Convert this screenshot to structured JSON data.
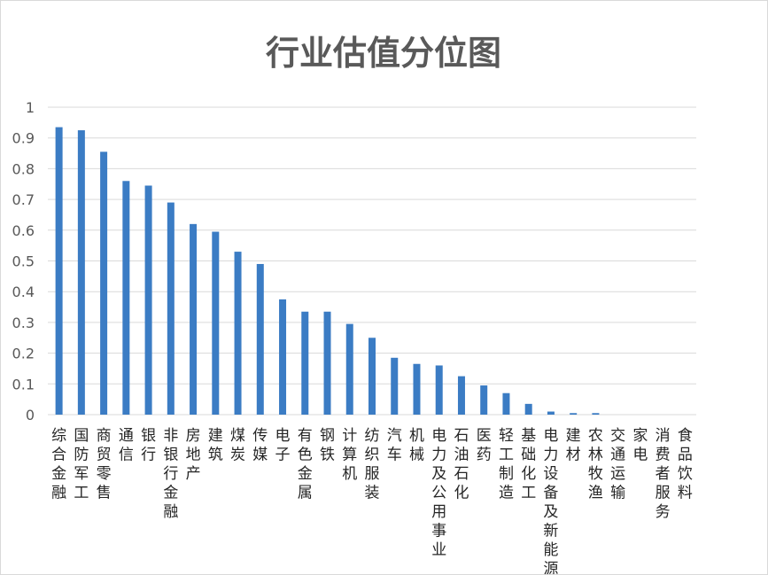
{
  "chart_data": {
    "type": "bar",
    "title": "行业估值分位图",
    "xlabel": "",
    "ylabel": "",
    "ylim": [
      0,
      1
    ],
    "yticks": [
      0,
      0.1,
      0.2,
      0.3,
      0.4,
      0.5,
      0.6,
      0.7,
      0.8,
      0.9,
      1
    ],
    "ytick_labels": [
      "0",
      "0.1",
      "0.2",
      "0.3",
      "0.4",
      "0.5",
      "0.6",
      "0.7",
      "0.8",
      "0.9",
      "1"
    ],
    "grid": true,
    "legend": "none",
    "bar_color": "#3b7cc4",
    "categories": [
      "综合金融",
      "国防军工",
      "商贸零售",
      "通信",
      "银行",
      "非银行金融",
      "房地产",
      "建筑",
      "煤炭",
      "传媒",
      "电子",
      "有色金属",
      "钢铁",
      "计算机",
      "纺织服装",
      "汽车",
      "机械",
      "电力及公用事业",
      "石油石化",
      "医药",
      "轻工制造",
      "基础化工",
      "电力设备及新能源",
      "建材",
      "农林牧渔",
      "交通运输",
      "家电",
      "消费者服务",
      "食品饮料"
    ],
    "values": [
      0.935,
      0.925,
      0.855,
      0.76,
      0.745,
      0.69,
      0.62,
      0.595,
      0.53,
      0.49,
      0.375,
      0.335,
      0.335,
      0.295,
      0.25,
      0.185,
      0.165,
      0.16,
      0.125,
      0.095,
      0.07,
      0.035,
      0.01,
      0.005,
      0.005,
      0,
      0,
      0,
      0
    ]
  }
}
